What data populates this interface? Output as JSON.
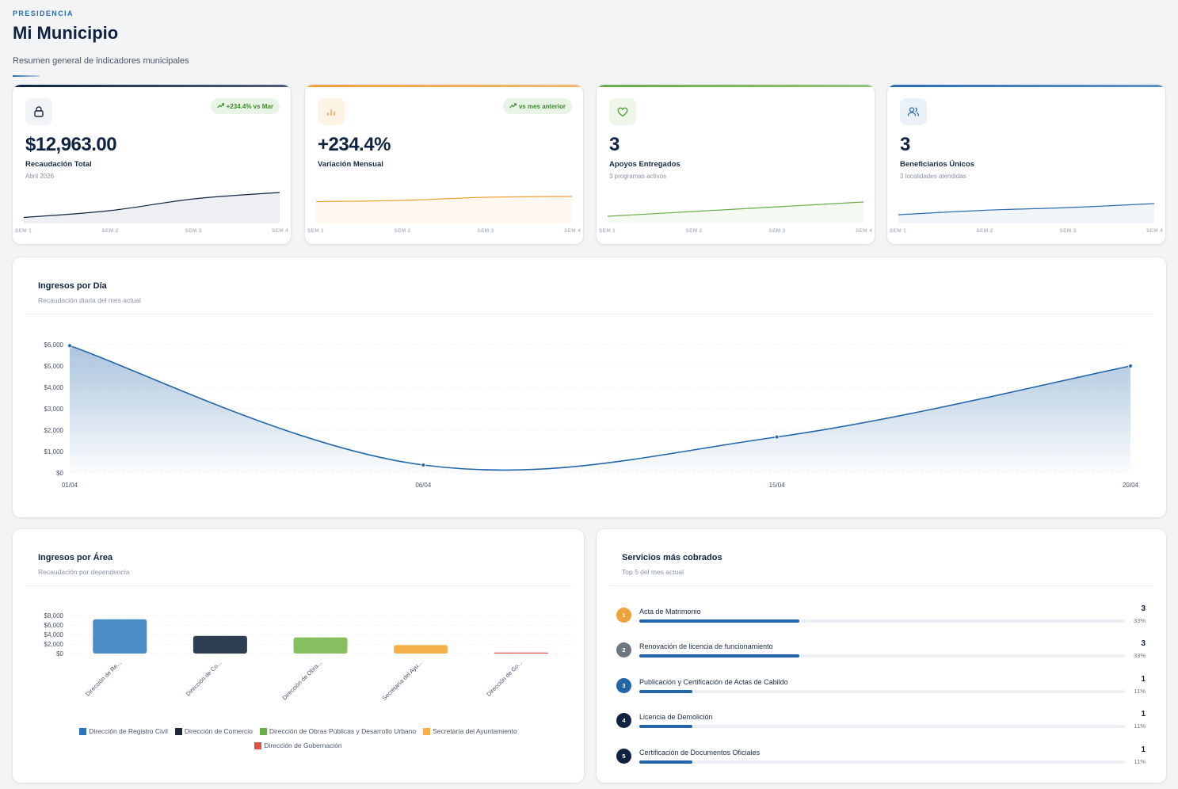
{
  "header": {
    "eyebrow": "PRESIDENCIA",
    "title": "Mi Municipio",
    "subtitle": "Resumen general de indicadores municipales"
  },
  "kpis": [
    {
      "icon": "lock-icon",
      "accent": "#0f2340",
      "badge": "+234.4% vs Mar",
      "value": "$12,963.00",
      "label": "Recaudación Total",
      "sublabel": "Abril 2026",
      "trend": [
        0.15,
        0.32,
        0.62,
        0.78
      ],
      "weeks": [
        "SEM 1",
        "SEM 2",
        "SEM 3",
        "SEM 4"
      ]
    },
    {
      "icon": "bar-chart-icon",
      "accent": "#f0a23a",
      "badge": "vs mes anterior",
      "value": "+234.4%",
      "label": "Variación Mensual",
      "sublabel": "",
      "trend": [
        0.55,
        0.58,
        0.66,
        0.68
      ],
      "weeks": [
        "SEM 1",
        "SEM 2",
        "SEM 3",
        "SEM 4"
      ]
    },
    {
      "icon": "heart-icon",
      "accent": "#6aad4a",
      "badge": "",
      "value": "3",
      "label": "Apoyos Entregados",
      "sublabel": "3 programas activos",
      "trend": [
        0.18,
        0.3,
        0.42,
        0.54
      ],
      "weeks": [
        "SEM 1",
        "SEM 2",
        "SEM 3",
        "SEM 4"
      ]
    },
    {
      "icon": "users-icon",
      "accent": "#2b6cb0",
      "badge": "",
      "value": "3",
      "label": "Beneficiarios Únicos",
      "sublabel": "3 localidades atendidas",
      "trend": [
        0.22,
        0.33,
        0.4,
        0.5
      ],
      "weeks": [
        "SEM 1",
        "SEM 2",
        "SEM 3",
        "SEM 4"
      ]
    }
  ],
  "daily": {
    "title": "Ingresos por Día",
    "subtitle": "Recaudación diaria del mes actual",
    "chart_data": {
      "type": "area",
      "x": [
        "01/04",
        "06/04",
        "15/04",
        "20/04"
      ],
      "values": [
        5950,
        370,
        1680,
        5000
      ],
      "ylim": [
        0,
        6000
      ],
      "yticks": [
        "$0",
        "$1,000",
        "$2,000",
        "$3,000",
        "$4,000",
        "$5,000",
        "$6,000"
      ],
      "color": "#2366a8"
    }
  },
  "areas": {
    "title": "Ingresos por Área",
    "subtitle": "Recaudación por dependencia",
    "chart_data": {
      "type": "bar",
      "categories": [
        "Dirección de Re...",
        "Dirección de Co...",
        "Dirección de Obra...",
        "Secretaría del Ayu...",
        "Dirección de Go..."
      ],
      "values": [
        7200,
        3700,
        3400,
        1800,
        120
      ],
      "ylim": [
        0,
        8000
      ],
      "yticks": [
        "$0",
        "$2,000",
        "$4,000",
        "$6,000",
        "$8,000"
      ],
      "colors": [
        "#4a8cc4",
        "#2f3d52",
        "#86bf5f",
        "#f5b04c",
        "#e0524b"
      ],
      "legend": [
        "Dirección de Registro Civil",
        "Dirección de Comercio",
        "Dirección de Obras Públicas y Desarrollo Urbano",
        "Secretaría del Ayuntamiento",
        "Dirección de Gobernación"
      ],
      "legend_colors": [
        "#2d74bb",
        "#1c2b40",
        "#6aad4a",
        "#f5b04c",
        "#e0524b"
      ]
    }
  },
  "services": {
    "title": "Servicios más cobrados",
    "subtitle": "Top 5 del mes actual",
    "items": [
      {
        "rank": "1",
        "name": "Acta de Matrimonio",
        "count": "3",
        "pct": "33%",
        "fill": 0.33,
        "color": "#f0a23a"
      },
      {
        "rank": "2",
        "name": "Renovación de licencia de funcionamiento",
        "count": "3",
        "pct": "33%",
        "fill": 0.33,
        "color": "#6e7683"
      },
      {
        "rank": "3",
        "name": "Publicación y Certificación de Actas de Cabildo",
        "count": "1",
        "pct": "11%",
        "fill": 0.11,
        "color": "#2366a8"
      },
      {
        "rank": "4",
        "name": "Licencia de Demolición",
        "count": "1",
        "pct": "11%",
        "fill": 0.11,
        "color": "#0f2340"
      },
      {
        "rank": "5",
        "name": "Certificación de Documentos Oficiales",
        "count": "1",
        "pct": "11%",
        "fill": 0.11,
        "color": "#0f2340"
      }
    ]
  }
}
